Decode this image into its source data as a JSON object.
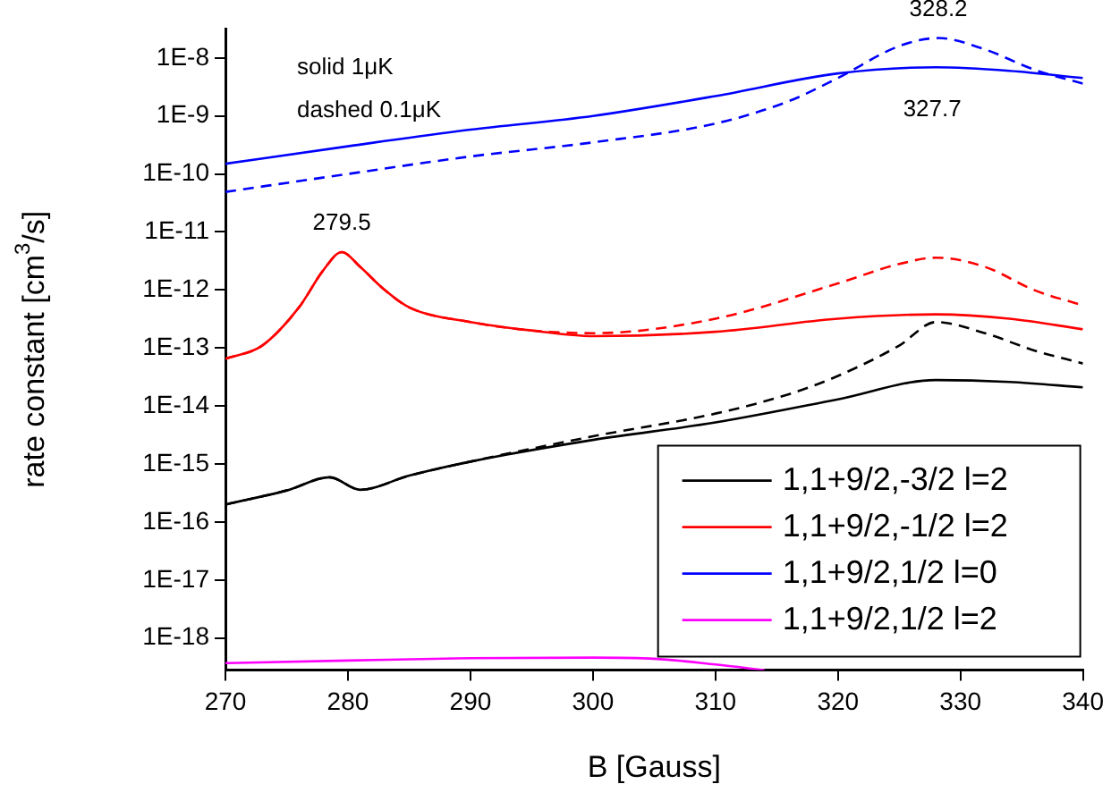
{
  "chart_data": {
    "type": "line",
    "xlabel": "B [Gauss]",
    "ylabel": "rate constant [cm$^{3}$/s]",
    "log": "y",
    "grid": false,
    "marker": "none",
    "legend": "bottom right",
    "xlim": [
      270,
      340
    ],
    "xticks": [
      270,
      280,
      290,
      300,
      310,
      320,
      330,
      340
    ],
    "ylim": [
      2.8e-19,
      3.2e-08
    ],
    "yticks": [
      {
        "value": 1e-18,
        "label": "1E-18"
      },
      {
        "value": 1e-17,
        "label": "1E-17"
      },
      {
        "value": 1e-16,
        "label": "1E-16"
      },
      {
        "value": 1e-15,
        "label": "1E-15"
      },
      {
        "value": 1e-14,
        "label": "1E-14"
      },
      {
        "value": 1e-13,
        "label": "1E-13"
      },
      {
        "value": 1e-12,
        "label": "1E-12"
      },
      {
        "value": 1e-11,
        "label": "1E-11"
      },
      {
        "value": 1e-10,
        "label": "1E-10"
      },
      {
        "value": 1e-09,
        "label": "1E-9"
      },
      {
        "value": 1e-08,
        "label": "1E-8"
      }
    ],
    "series": [
      {
        "name": "1,1+9/2,-3/2 l=2",
        "color": "#000000",
        "line_style": "solid",
        "x": [
          270,
          275,
          278.5,
          281,
          285,
          290,
          300,
          310,
          320,
          328,
          334,
          340
        ],
        "values": [
          2e-16,
          3.5e-16,
          5.9e-16,
          3.6e-16,
          6.3e-16,
          1.1e-15,
          2.6e-15,
          5.2e-15,
          1.3e-14,
          2.8e-14,
          2.6e-14,
          2.1e-14
        ]
      },
      {
        "color": "#000000",
        "line_style": "dashed",
        "x": [
          270,
          275,
          278.5,
          281,
          285,
          290,
          300,
          310,
          316,
          320,
          325,
          328,
          332,
          336,
          340
        ],
        "values": [
          2e-16,
          3.5e-16,
          5.9e-16,
          3.6e-16,
          6.3e-16,
          1.1e-15,
          3e-15,
          7.4e-15,
          1.6e-14,
          3.3e-14,
          1.1e-13,
          2.8e-13,
          1.8e-13,
          9.1e-14,
          5.4e-14
        ]
      },
      {
        "name": "1,1+9/2,-1/2 l=2",
        "color": "#ff0000",
        "line_style": "solid",
        "x": [
          270,
          273,
          276,
          278,
          279.5,
          281,
          283,
          285,
          290,
          295,
          300,
          310,
          320,
          328,
          334,
          340
        ],
        "values": [
          6.5e-14,
          1.1e-13,
          5e-13,
          2.2e-12,
          4.5e-12,
          2.5e-12,
          1e-12,
          5e-13,
          2.8e-13,
          2e-13,
          1.6e-13,
          1.9e-13,
          3.2e-13,
          3.8e-13,
          3.2e-13,
          2.1e-13
        ]
      },
      {
        "color": "#ff0000",
        "line_style": "dashed",
        "x": [
          270,
          273,
          276,
          278,
          279.5,
          281,
          283,
          285,
          290,
          295,
          300,
          310,
          320,
          325,
          328,
          332,
          336,
          340
        ],
        "values": [
          6.5e-14,
          1.1e-13,
          5e-13,
          2.2e-12,
          4.5e-12,
          2.5e-12,
          1e-12,
          5e-13,
          2.8e-13,
          2e-13,
          1.8e-13,
          3.2e-13,
          1.3e-12,
          2.8e-12,
          3.6e-12,
          2.5e-12,
          1e-12,
          5.4e-13
        ]
      },
      {
        "name": "1,1+9/2,1/2 l=0",
        "color": "#0000ff",
        "line_style": "solid",
        "x": [
          270,
          280,
          290,
          300,
          310,
          320,
          328,
          334,
          340
        ],
        "values": [
          1.5e-10,
          3e-10,
          5.8e-10,
          1e-09,
          2.2e-09,
          5.4e-09,
          6.9e-09,
          6e-09,
          4.5e-09
        ]
      },
      {
        "color": "#0000ff",
        "line_style": "dashed",
        "x": [
          270,
          280,
          290,
          300,
          310,
          316,
          320,
          325,
          328.2,
          332,
          336,
          340
        ],
        "values": [
          4.9e-11,
          1e-10,
          2e-10,
          3.5e-10,
          7.4e-10,
          1.8e-09,
          4.5e-09,
          1.6e-08,
          2.2e-08,
          1.4e-08,
          6.3e-09,
          3.6e-09
        ]
      },
      {
        "name": "1,1+9/2,1/2 l=2",
        "color": "#ff00ff",
        "line_style": "solid",
        "x": [
          270,
          280,
          290,
          300,
          305,
          310,
          314
        ],
        "values": [
          3.7e-19,
          4.1e-19,
          4.5e-19,
          4.6e-19,
          4.4e-19,
          3.5e-19,
          2.8e-19
        ]
      }
    ],
    "annotations": [
      "solid 1μK",
      "dashed 0.1μK",
      {
        "text": "279.5",
        "x": 279.5,
        "y": 4.5e-12
      },
      {
        "text": "328.2",
        "x": 328.2,
        "y": 2.2e-08
      },
      {
        "text": "327.7",
        "x": 327.7,
        "y": 6.9e-09
      }
    ]
  }
}
